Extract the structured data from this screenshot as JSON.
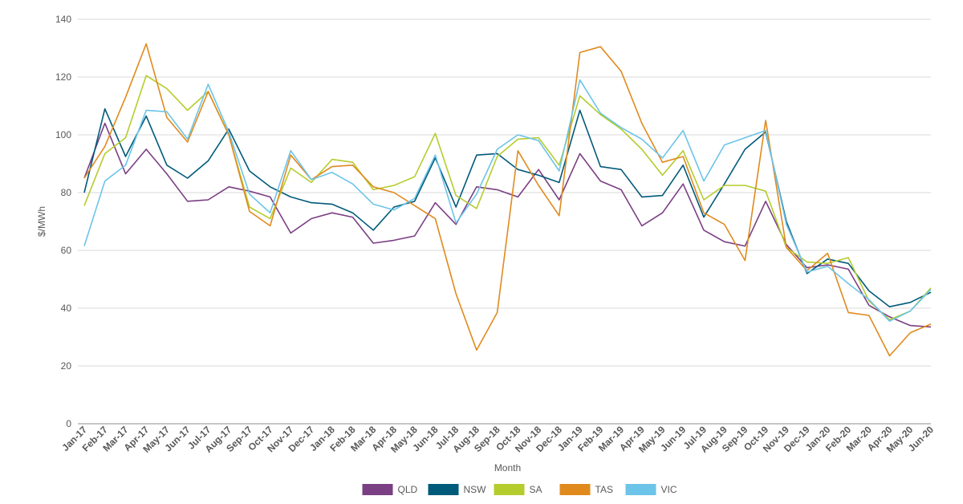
{
  "chart_data": {
    "type": "line",
    "title": "",
    "xlabel": "Month",
    "ylabel": "$/MWh",
    "ylim": [
      0,
      140
    ],
    "yticks": [
      0,
      20,
      40,
      60,
      80,
      100,
      120,
      140
    ],
    "grid": true,
    "legend_position": "bottom",
    "categories": [
      "Jan-17",
      "Feb-17",
      "Mar-17",
      "Apr-17",
      "May-17",
      "Jun-17",
      "Jul-17",
      "Aug-17",
      "Sep-17",
      "Oct-17",
      "Nov-17",
      "Dec-17",
      "Jan-18",
      "Feb-18",
      "Mar-18",
      "Apr-18",
      "May-18",
      "Jun-18",
      "Jul-18",
      "Aug-18",
      "Sep-18",
      "Oct-18",
      "Nov-18",
      "Dec-18",
      "Jan-19",
      "Feb-19",
      "Mar-19",
      "Apr-19",
      "May-19",
      "Jun-19",
      "Jul-19",
      "Aug-19",
      "Sep-19",
      "Oct-19",
      "Nov-19",
      "Dec-19",
      "Jan-20",
      "Feb-20",
      "Mar-20",
      "Apr-20",
      "May-20",
      "Jun-20"
    ],
    "series": [
      {
        "name": "QLD",
        "color": "#7B3F83",
        "values": [
          85,
          104,
          86.5,
          95,
          86.5,
          77,
          77.5,
          82,
          80.5,
          78.5,
          66,
          71,
          73,
          71.5,
          62.5,
          63.5,
          65,
          76.5,
          69,
          82,
          81,
          78.5,
          88,
          77.5,
          93.5,
          84,
          81,
          68.5,
          73,
          83,
          67,
          63,
          61.5,
          77,
          62,
          54,
          55,
          53.5,
          41,
          37,
          34,
          33.5
        ]
      },
      {
        "name": "NSW",
        "color": "#005A7A",
        "values": [
          80,
          109,
          92.5,
          106.5,
          89.5,
          85,
          91,
          102,
          87.5,
          82,
          78.5,
          76.5,
          76,
          73,
          67,
          75,
          77,
          92,
          75,
          93,
          93.5,
          88,
          86,
          83.5,
          108.5,
          89,
          88,
          78.5,
          79,
          89.5,
          71.5,
          83,
          95,
          101,
          70,
          52,
          57,
          55.5,
          46,
          40.5,
          42,
          45.5
        ]
      },
      {
        "name": "SA",
        "color": "#B5CC2D",
        "values": [
          75.5,
          93.5,
          99,
          120.5,
          116,
          108.5,
          115,
          100,
          75,
          71,
          88.5,
          83.5,
          91.5,
          90.5,
          81,
          82.5,
          85.5,
          100.5,
          79,
          74.5,
          92.5,
          98.5,
          99,
          89.5,
          113.5,
          107,
          102,
          95,
          86,
          94.5,
          77.5,
          82.5,
          82.5,
          80.5,
          61,
          56,
          55.5,
          57.5,
          42.5,
          36,
          39,
          47
        ]
      },
      {
        "name": "TAS",
        "color": "#E08A1E",
        "values": [
          85,
          96,
          113,
          131.5,
          106,
          97.5,
          115,
          100,
          73.5,
          68.5,
          93,
          84.5,
          89,
          89.5,
          82,
          80,
          75.5,
          71,
          45,
          25.5,
          38.5,
          94.5,
          82.5,
          72,
          128.5,
          130.5,
          122,
          104,
          90.5,
          92.5,
          73,
          69,
          56.5,
          105,
          61,
          53,
          59,
          38.5,
          37.5,
          23.5,
          31.5,
          34.5
        ]
      },
      {
        "name": "VIC",
        "color": "#6CC4E8",
        "values": [
          61.5,
          84,
          89.5,
          108.5,
          108,
          98.5,
          117.5,
          101,
          79.5,
          73,
          94.5,
          84.5,
          87,
          83,
          76,
          74,
          78,
          93,
          69.5,
          79.5,
          95,
          100,
          98,
          87.5,
          119,
          107.5,
          102.5,
          98.5,
          92,
          101.5,
          84,
          96.5,
          99,
          101.5,
          69,
          52.5,
          54.5,
          48.5,
          43,
          35.5,
          39,
          46.5
        ]
      }
    ]
  }
}
